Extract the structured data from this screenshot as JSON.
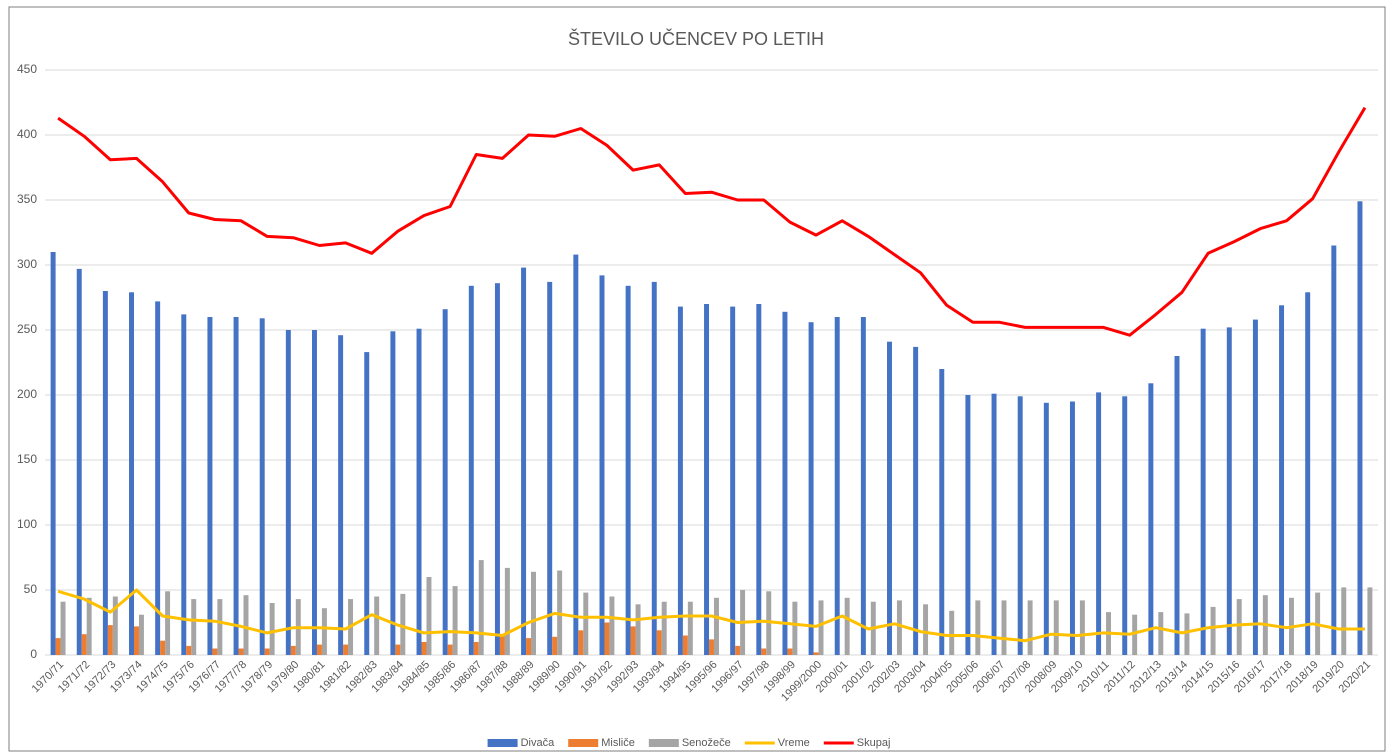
{
  "chart_data": {
    "type": "bar_line",
    "title": "ŠTEVILO UČENCEV PO LETIH",
    "categories": [
      "1970/71",
      "1971/72",
      "1972/73",
      "1973/74",
      "1974/75",
      "1975/76",
      "1976/77",
      "1977/78",
      "1978/79",
      "1979/80",
      "1980/81",
      "1981/82",
      "1982/83",
      "1983/84",
      "1984/85",
      "1985/86",
      "1986/87",
      "1987/88",
      "1988/89",
      "1989/90",
      "1990/91",
      "1991/92",
      "1992/93",
      "1993/94",
      "1994/95",
      "1995/96",
      "1996/97",
      "1997/98",
      "1998/99",
      "1999/2000",
      "2000/01",
      "2001/02",
      "2002/03",
      "2003/04",
      "2004/05",
      "2005/06",
      "2006/07",
      "2007/08",
      "2008/09",
      "2009/10",
      "2010/11",
      "2011/12",
      "2012/13",
      "2013/14",
      "2014/15",
      "2015/16",
      "2016/17",
      "2017/18",
      "2018/19",
      "2019/20",
      "2020/21"
    ],
    "series": [
      {
        "name": "Divača",
        "kind": "bar",
        "color": "#4472c4",
        "values": [
          310,
          297,
          280,
          279,
          272,
          262,
          260,
          260,
          259,
          250,
          250,
          246,
          233,
          249,
          251,
          266,
          284,
          286,
          298,
          287,
          308,
          292,
          284,
          287,
          268,
          270,
          268,
          270,
          264,
          256,
          260,
          260,
          241,
          237,
          220,
          200,
          201,
          199,
          194,
          195,
          202,
          199,
          209,
          230,
          251,
          252,
          258,
          269,
          279,
          315,
          349
        ]
      },
      {
        "name": "Misliče",
        "kind": "bar",
        "color": "#ed7d31",
        "values": [
          13,
          16,
          23,
          22,
          11,
          7,
          5,
          5,
          5,
          7,
          8,
          8,
          0,
          8,
          10,
          8,
          10,
          15,
          13,
          14,
          19,
          25,
          22,
          19,
          15,
          12,
          7,
          5,
          5,
          2,
          0,
          0,
          0,
          0,
          0,
          0,
          0,
          0,
          0,
          0,
          0,
          0,
          0,
          0,
          0,
          0,
          0,
          0,
          0,
          0,
          0
        ]
      },
      {
        "name": "Senožeče",
        "kind": "bar",
        "color": "#a5a5a5",
        "values": [
          41,
          44,
          45,
          31,
          49,
          43,
          43,
          46,
          40,
          43,
          36,
          43,
          45,
          47,
          60,
          53,
          73,
          67,
          64,
          65,
          48,
          45,
          39,
          41,
          41,
          44,
          50,
          49,
          41,
          42,
          44,
          41,
          42,
          39,
          34,
          42,
          42,
          42,
          42,
          42,
          33,
          31,
          33,
          32,
          37,
          43,
          46,
          44,
          48,
          52,
          52
        ]
      },
      {
        "name": "Vreme",
        "kind": "line",
        "color": "#ffc000",
        "values": [
          49,
          43,
          33,
          50,
          30,
          27,
          26,
          22,
          17,
          21,
          21,
          20,
          31,
          23,
          17,
          18,
          17,
          15,
          25,
          32,
          29,
          29,
          27,
          29,
          30,
          30,
          25,
          26,
          24,
          22,
          30,
          20,
          24,
          18,
          15,
          15,
          13,
          11,
          16,
          15,
          17,
          16,
          21,
          17,
          21,
          23,
          24,
          21,
          24,
          20,
          20
        ]
      },
      {
        "name": "Skupaj",
        "kind": "line",
        "color": "#ff0000",
        "values": [
          413,
          399,
          381,
          382,
          364,
          340,
          335,
          334,
          322,
          321,
          315,
          317,
          309,
          326,
          338,
          345,
          385,
          382,
          400,
          399,
          405,
          392,
          373,
          377,
          355,
          356,
          350,
          350,
          333,
          323,
          334,
          322,
          308,
          294,
          269,
          256,
          256,
          252,
          252,
          252,
          252,
          246,
          262,
          279,
          309,
          318,
          328,
          334,
          351,
          387,
          421
        ]
      }
    ],
    "ylim": [
      0,
      450
    ],
    "yticks": [
      0,
      50,
      100,
      150,
      200,
      250,
      300,
      350,
      400,
      450
    ],
    "grid": true,
    "legend": "bottom"
  }
}
